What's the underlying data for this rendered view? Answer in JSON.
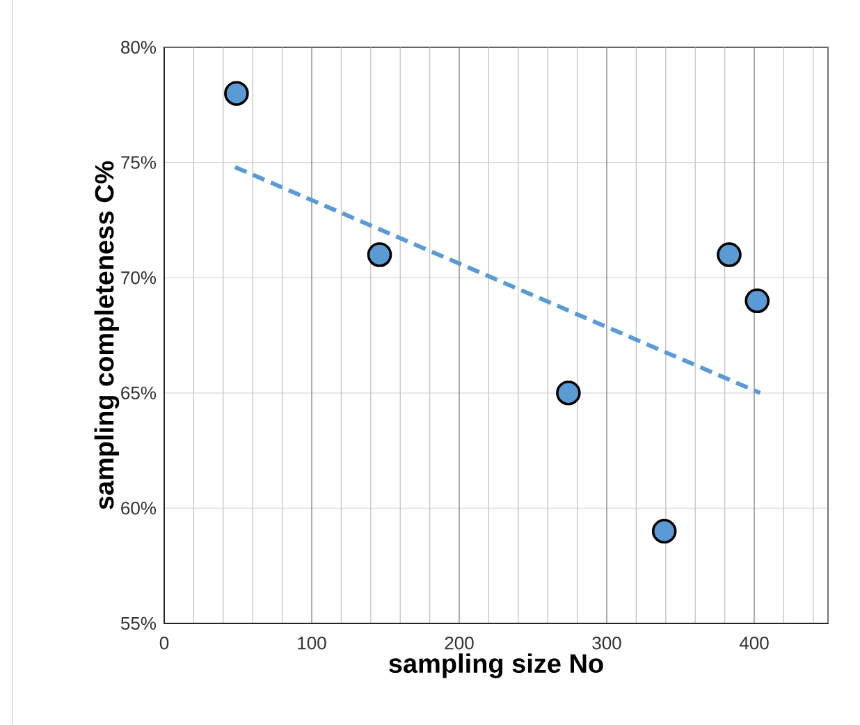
{
  "chart_data": {
    "type": "scatter",
    "xlabel": "sampling  size  No",
    "ylabel": "sampling  completeness  C%",
    "series": [
      {
        "color": "#5b9bd5",
        "marker": "circle",
        "x": [
          49,
          146,
          274,
          339,
          383,
          402
        ],
        "values": [
          78,
          71,
          65,
          59,
          71,
          69
        ]
      },
      {
        "type": "line",
        "color": "#5b9bd5",
        "marker": "none",
        "line_style": "dashed",
        "x": [
          48,
          404
        ],
        "values": [
          74.8,
          65.0
        ]
      }
    ],
    "xlim": [
      0,
      450
    ],
    "ylim": [
      55,
      80
    ],
    "xticks": [
      0,
      {
        "value": 20,
        "label": null
      },
      {
        "value": 40,
        "label": null
      },
      {
        "value": 60,
        "label": null
      },
      {
        "value": 80,
        "label": null
      },
      100,
      {
        "value": 120,
        "label": null
      },
      {
        "value": 140,
        "label": null
      },
      {
        "value": 160,
        "label": null
      },
      {
        "value": 180,
        "label": null
      },
      200,
      {
        "value": 220,
        "label": null
      },
      {
        "value": 240,
        "label": null
      },
      {
        "value": 260,
        "label": null
      },
      {
        "value": 280,
        "label": null
      },
      300,
      {
        "value": 320,
        "label": null
      },
      {
        "value": 340,
        "label": null
      },
      {
        "value": 360,
        "label": null
      },
      {
        "value": 380,
        "label": null
      },
      400,
      {
        "value": 420,
        "label": null
      },
      {
        "value": 440,
        "label": null
      }
    ],
    "yticks": [
      {
        "value": 55,
        "label": "55%"
      },
      {
        "value": 60,
        "label": "60%"
      },
      {
        "value": 65,
        "label": "65%"
      },
      {
        "value": 70,
        "label": "70%"
      },
      {
        "value": 75,
        "label": "75%"
      },
      {
        "value": 80,
        "label": "80%"
      }
    ],
    "grid": true
  }
}
